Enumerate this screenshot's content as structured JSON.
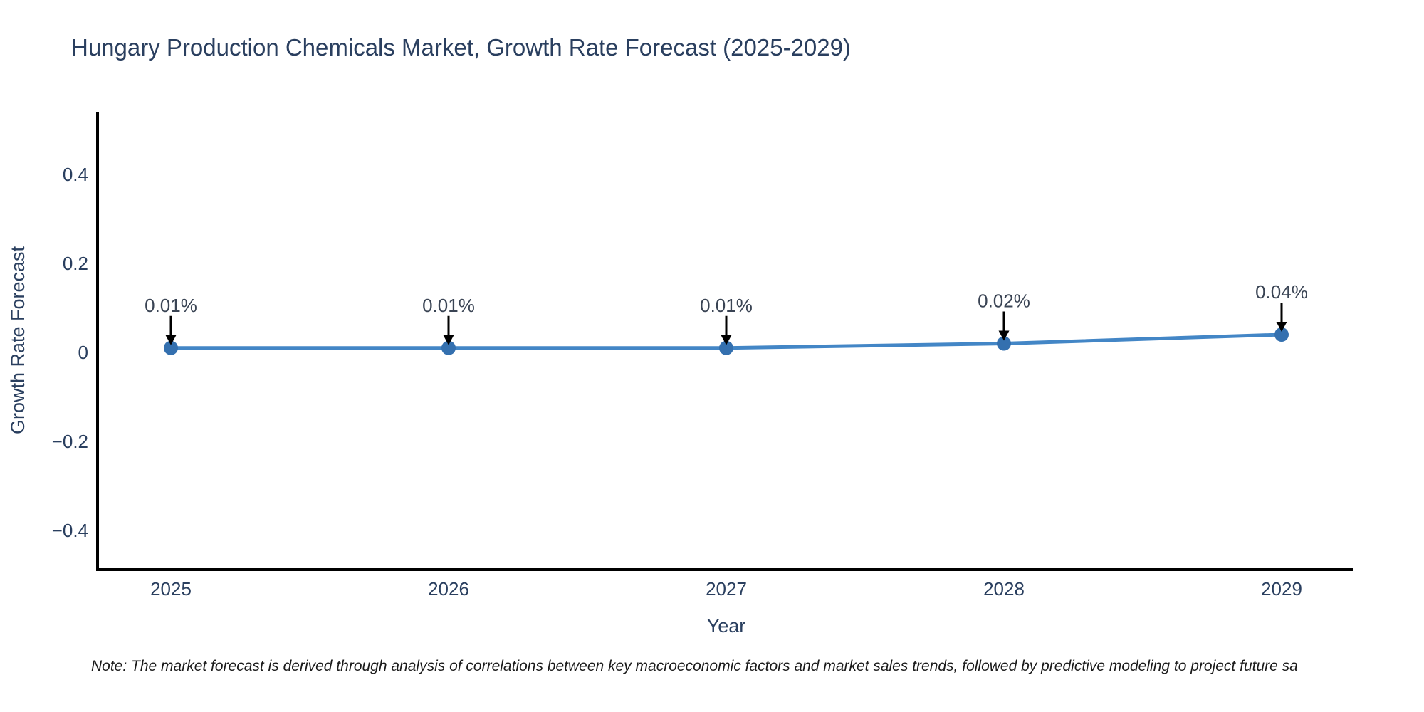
{
  "title": "Hungary Production Chemicals Market, Growth Rate Forecast (2025-2029)",
  "note": "Note: The market forecast is derived through analysis of correlations between key macroeconomic factors and market sales trends, followed by predictive modeling to project future sa",
  "chart_data": {
    "type": "line",
    "title": "Hungary Production Chemicals Market, Growth Rate Forecast (2025-2029)",
    "xlabel": "Year",
    "ylabel": "Growth Rate Forecast",
    "x": [
      2025,
      2026,
      2027,
      2028,
      2029
    ],
    "x_tick_labels": [
      "2025",
      "2026",
      "2027",
      "2028",
      "2029"
    ],
    "series": [
      {
        "name": "Growth Rate Forecast",
        "values_percent": [
          0.01,
          0.01,
          0.01,
          0.02,
          0.04
        ],
        "point_labels": [
          "0.01%",
          "0.01%",
          "0.01%",
          "0.02%",
          "0.04%"
        ]
      }
    ],
    "y_ticks": [
      0.4,
      0.2,
      0,
      -0.2,
      -0.4
    ],
    "y_tick_labels": [
      "0.4",
      "0.2",
      "0",
      "−0.2",
      "−0.4"
    ],
    "ylim": [
      -0.49,
      0.54
    ],
    "xlim": [
      2024.73,
      2029.26
    ],
    "grid": false,
    "legend_position": "none",
    "annotations_have_arrows": true,
    "colors": {
      "line": "#4386c6",
      "marker": "#3470af",
      "axis_line": "#000000",
      "arrow": "#000000",
      "title_text": "#2a3f5f",
      "tick_text": "#2a3f5f",
      "annotation_text": "#3a4454",
      "note_text": "#1a1a1a",
      "background": "#ffffff"
    }
  }
}
